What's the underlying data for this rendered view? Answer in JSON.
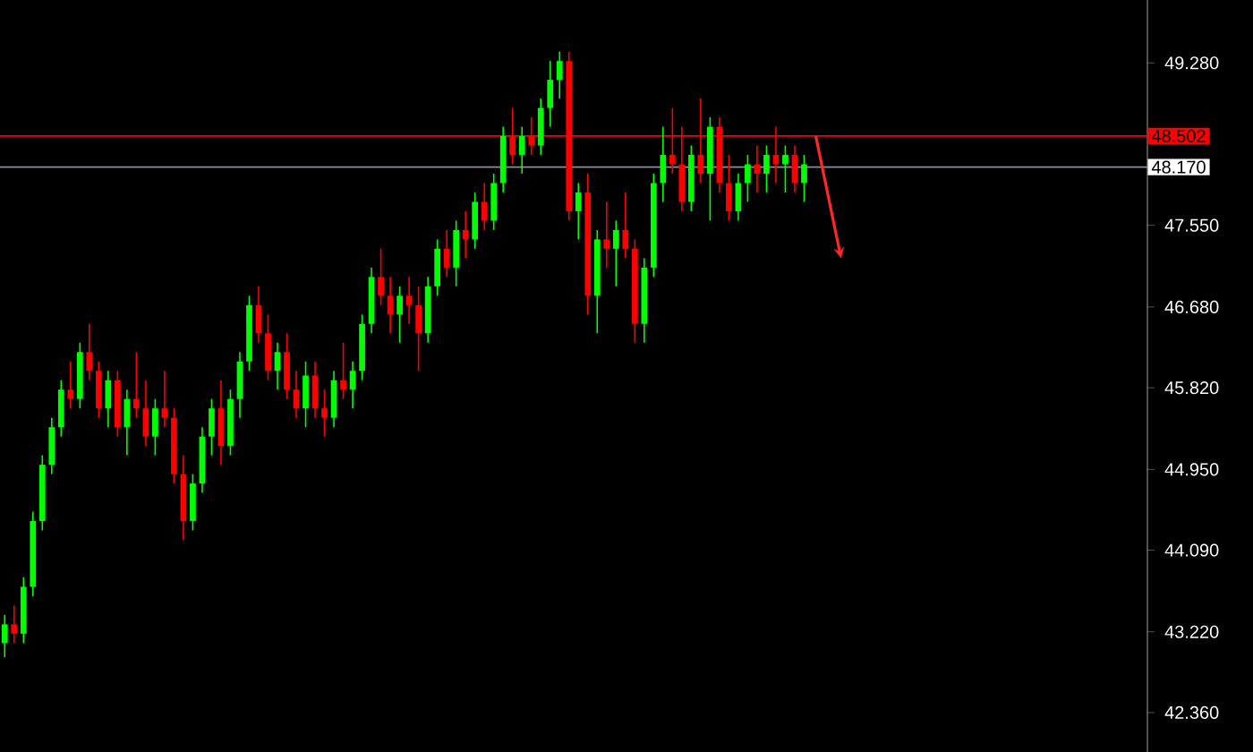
{
  "chart_data": {
    "type": "candlestick",
    "tick_labels": "y",
    "categories": [
      null,
      null,
      null,
      null,
      null,
      null,
      null,
      null,
      null,
      null,
      null,
      null,
      null,
      null,
      null,
      null,
      null,
      null,
      null,
      null,
      null,
      null,
      null,
      null,
      null,
      null,
      null,
      null,
      null,
      null,
      null,
      null,
      null,
      null,
      null,
      null,
      null,
      null,
      null,
      null,
      null,
      null,
      null,
      null,
      null,
      null,
      null,
      null,
      null,
      null,
      null,
      null,
      null,
      null,
      null,
      null,
      null,
      null,
      null,
      null,
      null,
      null,
      null,
      null,
      null,
      null,
      null,
      null,
      null,
      null,
      null,
      null,
      null,
      null,
      null,
      null,
      null,
      null,
      null,
      null,
      null,
      null,
      null,
      null,
      null,
      null,
      null,
      null,
      null,
      null,
      null,
      null,
      null,
      null,
      null,
      null,
      null,
      null,
      null,
      null,
      null,
      null,
      null,
      null,
      null,
      null,
      null,
      null,
      null,
      null,
      null,
      null,
      null,
      null,
      null,
      null,
      null,
      null,
      null,
      null,
      null,
      null
    ],
    "ohlc": [
      [
        43.1,
        43.4,
        42.95,
        43.3
      ],
      [
        43.3,
        43.5,
        43.1,
        43.2
      ],
      [
        43.2,
        43.8,
        43.1,
        43.7
      ],
      [
        43.7,
        44.5,
        43.6,
        44.4
      ],
      [
        44.4,
        45.1,
        44.3,
        45.0
      ],
      [
        45.0,
        45.5,
        44.9,
        45.4
      ],
      [
        45.4,
        45.9,
        45.3,
        45.8
      ],
      [
        45.8,
        46.1,
        45.6,
        45.7
      ],
      [
        45.7,
        46.3,
        45.6,
        46.2
      ],
      [
        46.2,
        46.5,
        45.9,
        46.0
      ],
      [
        46.0,
        46.1,
        45.5,
        45.6
      ],
      [
        45.6,
        46.0,
        45.4,
        45.9
      ],
      [
        45.9,
        46.0,
        45.3,
        45.4
      ],
      [
        45.4,
        45.8,
        45.1,
        45.7
      ],
      [
        45.7,
        46.2,
        45.5,
        45.6
      ],
      [
        45.6,
        45.9,
        45.2,
        45.3
      ],
      [
        45.3,
        45.7,
        45.1,
        45.6
      ],
      [
        45.6,
        46.0,
        45.4,
        45.5
      ],
      [
        45.5,
        45.6,
        44.8,
        44.9
      ],
      [
        44.9,
        45.1,
        44.2,
        44.4
      ],
      [
        44.4,
        44.9,
        44.3,
        44.8
      ],
      [
        44.8,
        45.4,
        44.7,
        45.3
      ],
      [
        45.3,
        45.7,
        45.1,
        45.6
      ],
      [
        45.6,
        45.9,
        45.0,
        45.2
      ],
      [
        45.2,
        45.8,
        45.1,
        45.7
      ],
      [
        45.7,
        46.2,
        45.5,
        46.1
      ],
      [
        46.1,
        46.8,
        46.0,
        46.7
      ],
      [
        46.7,
        46.9,
        46.3,
        46.4
      ],
      [
        46.4,
        46.6,
        45.9,
        46.0
      ],
      [
        46.0,
        46.3,
        45.8,
        46.2
      ],
      [
        46.2,
        46.4,
        45.7,
        45.8
      ],
      [
        45.8,
        46.0,
        45.5,
        45.6
      ],
      [
        45.6,
        46.1,
        45.4,
        45.95
      ],
      [
        45.95,
        46.1,
        45.5,
        45.6
      ],
      [
        45.6,
        45.8,
        45.3,
        45.5
      ],
      [
        45.5,
        46.0,
        45.4,
        45.9
      ],
      [
        45.9,
        46.3,
        45.7,
        45.8
      ],
      [
        45.8,
        46.1,
        45.6,
        46.0
      ],
      [
        46.0,
        46.6,
        45.9,
        46.5
      ],
      [
        46.5,
        47.1,
        46.4,
        47.0
      ],
      [
        47.0,
        47.3,
        46.7,
        46.8
      ],
      [
        46.8,
        47.0,
        46.4,
        46.6
      ],
      [
        46.6,
        46.9,
        46.3,
        46.8
      ],
      [
        46.8,
        47.0,
        46.5,
        46.7
      ],
      [
        46.7,
        46.9,
        46.0,
        46.4
      ],
      [
        46.4,
        47.0,
        46.3,
        46.9
      ],
      [
        46.9,
        47.4,
        46.8,
        47.3
      ],
      [
        47.3,
        47.5,
        47.0,
        47.1
      ],
      [
        47.1,
        47.6,
        46.9,
        47.5
      ],
      [
        47.5,
        47.7,
        47.2,
        47.4
      ],
      [
        47.4,
        47.9,
        47.3,
        47.8
      ],
      [
        47.8,
        48.0,
        47.5,
        47.6
      ],
      [
        47.6,
        48.1,
        47.5,
        48.0
      ],
      [
        48.0,
        48.6,
        47.9,
        48.5
      ],
      [
        48.5,
        48.8,
        48.2,
        48.3
      ],
      [
        48.3,
        48.6,
        48.1,
        48.5
      ],
      [
        48.5,
        48.7,
        48.3,
        48.4
      ],
      [
        48.4,
        48.9,
        48.3,
        48.8
      ],
      [
        48.8,
        49.3,
        48.6,
        49.1
      ],
      [
        49.1,
        49.4,
        48.9,
        49.3
      ],
      [
        49.3,
        49.4,
        47.6,
        47.7
      ],
      [
        47.7,
        48.0,
        47.4,
        47.9
      ],
      [
        47.9,
        48.1,
        46.6,
        46.8
      ],
      [
        46.8,
        47.5,
        46.4,
        47.4
      ],
      [
        47.4,
        47.8,
        47.1,
        47.3
      ],
      [
        47.3,
        47.6,
        46.9,
        47.5
      ],
      [
        47.5,
        47.9,
        47.2,
        47.3
      ],
      [
        47.3,
        47.4,
        46.3,
        46.5
      ],
      [
        46.5,
        47.2,
        46.3,
        47.1
      ],
      [
        47.1,
        48.1,
        47.0,
        48.0
      ],
      [
        48.0,
        48.6,
        47.8,
        48.3
      ],
      [
        48.3,
        48.8,
        48.1,
        48.2
      ],
      [
        48.2,
        48.6,
        47.7,
        47.8
      ],
      [
        47.8,
        48.4,
        47.7,
        48.3
      ],
      [
        48.3,
        48.9,
        48.0,
        48.1
      ],
      [
        48.1,
        48.7,
        47.6,
        48.6
      ],
      [
        48.6,
        48.7,
        47.9,
        48.0
      ],
      [
        48.0,
        48.3,
        47.6,
        47.7
      ],
      [
        47.7,
        48.1,
        47.6,
        48.0
      ],
      [
        48.0,
        48.3,
        47.8,
        48.2
      ],
      [
        48.2,
        48.4,
        47.9,
        48.1
      ],
      [
        48.1,
        48.4,
        47.9,
        48.3
      ],
      [
        48.3,
        48.6,
        48.0,
        48.2
      ],
      [
        48.2,
        48.4,
        47.9,
        48.3
      ],
      [
        48.3,
        48.4,
        47.9,
        48.0
      ],
      [
        48.0,
        48.3,
        47.8,
        48.2
      ],
      null,
      null,
      null,
      null,
      null,
      null,
      null,
      null,
      null,
      null,
      null,
      null,
      null,
      null,
      null,
      null,
      null,
      null,
      null,
      null,
      null,
      null,
      null,
      null,
      null,
      null,
      null,
      null,
      null,
      null,
      null,
      null,
      null,
      null,
      null,
      null
    ],
    "ylim": [
      41.94,
      49.95
    ],
    "yticks": [
      {
        "value": 42.36,
        "label": "42.360"
      },
      {
        "value": 43.22,
        "label": "43.220"
      },
      {
        "value": 44.09,
        "label": "44.090"
      },
      {
        "value": 44.95,
        "label": "44.950"
      },
      {
        "value": 45.82,
        "label": "45.820"
      },
      {
        "value": 46.68,
        "label": "46.680"
      },
      {
        "value": 47.55,
        "label": "47.550"
      },
      {
        "value": 49.28,
        "label": "49.280"
      }
    ],
    "ref_lines": [
      {
        "axis": "y",
        "value": 48.502,
        "label": "48.502",
        "color": "#ff0000"
      },
      {
        "axis": "y",
        "value": 48.17,
        "label": "48.170",
        "color": "#8a8f99"
      }
    ]
  }
}
